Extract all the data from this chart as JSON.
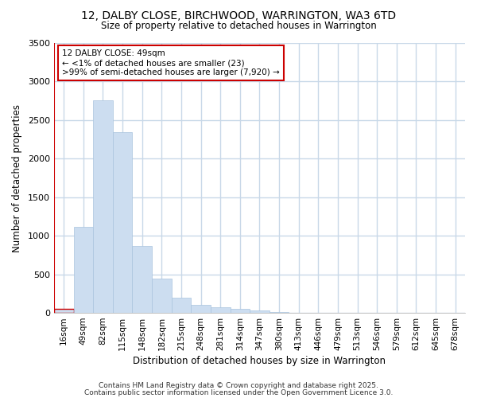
{
  "title1": "12, DALBY CLOSE, BIRCHWOOD, WARRINGTON, WA3 6TD",
  "title2": "Size of property relative to detached houses in Warrington",
  "xlabel": "Distribution of detached houses by size in Warrington",
  "ylabel": "Number of detached properties",
  "annotation_title": "12 DALBY CLOSE: 49sqm",
  "annotation_line2": "← <1% of detached houses are smaller (23)",
  "annotation_line3": ">99% of semi-detached houses are larger (7,920) →",
  "categories": [
    "16sqm",
    "49sqm",
    "82sqm",
    "115sqm",
    "148sqm",
    "182sqm",
    "215sqm",
    "248sqm",
    "281sqm",
    "314sqm",
    "347sqm",
    "380sqm",
    "413sqm",
    "446sqm",
    "479sqm",
    "513sqm",
    "546sqm",
    "579sqm",
    "612sqm",
    "645sqm",
    "678sqm"
  ],
  "values": [
    50,
    1120,
    2760,
    2340,
    870,
    440,
    200,
    105,
    70,
    50,
    30,
    10,
    5,
    2,
    1,
    1,
    0,
    0,
    0,
    0,
    0
  ],
  "bar_color": "#ccddf0",
  "bar_edge_color": "#aac4de",
  "highlight_bar_index": 0,
  "highlight_edge_color": "#cc0000",
  "vline_color": "#cc0000",
  "annotation_box_color": "#ffffff",
  "annotation_box_edge_color": "#cc0000",
  "bg_color": "#ffffff",
  "plot_bg_color": "#ffffff",
  "grid_color": "#c8d8e8",
  "ylim": [
    0,
    3500
  ],
  "yticks": [
    0,
    500,
    1000,
    1500,
    2000,
    2500,
    3000,
    3500
  ],
  "footer1": "Contains HM Land Registry data © Crown copyright and database right 2025.",
  "footer2": "Contains public sector information licensed under the Open Government Licence 3.0."
}
